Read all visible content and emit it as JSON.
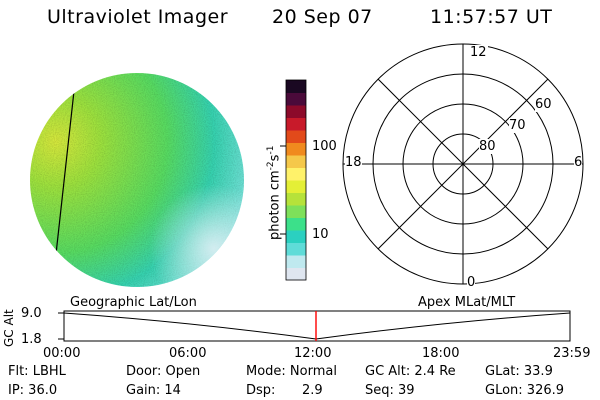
{
  "header": {
    "title": "Ultraviolet Imager",
    "date": "20 Sep 07",
    "time": "11:57:57 UT"
  },
  "colorbar": {
    "label": "photon cm",
    "label_sup1": "-2",
    "label_s": "s",
    "label_sup2": "-1",
    "tick_100": "100",
    "tick_10": "10",
    "colors": [
      "#dfe6f0",
      "#bfe9ef",
      "#5fdcd8",
      "#2bd0c0",
      "#3ce08a",
      "#7ee05a",
      "#b6e23a",
      "#e4ef36",
      "#fff26a",
      "#f5c84a",
      "#f08a1e",
      "#e24a1a",
      "#c81a2a",
      "#8c0a2a",
      "#4a0a3a",
      "#1a0822"
    ]
  },
  "polar": {
    "labels": {
      "top": "12",
      "bottom": "0",
      "left": "18",
      "right": "6"
    },
    "ring_labels": [
      "80",
      "70",
      "60"
    ]
  },
  "timeline": {
    "ylabel": "GC Alt",
    "y_top": "9.0",
    "y_bottom": "1.8",
    "left_label": "Geographic Lat/Lon",
    "right_label": "Apex MLat/MLT",
    "ticks": [
      "00:00",
      "06:00",
      "12:00",
      "18:00",
      "23:59"
    ],
    "marker_color": "#ff0000"
  },
  "info": {
    "flt": "Flt: LBHL",
    "ip": "IP: 36.0",
    "door": "Door: Open",
    "gain": "Gain: 14",
    "mode": "Mode: Normal",
    "dsp_label": "Dsp:",
    "dsp_value": "2.9",
    "gcalt": "GC Alt: 2.4 Re",
    "seq": "Seq: 39",
    "glat": "GLat:  33.9",
    "glon": "GLon: 326.9"
  }
}
